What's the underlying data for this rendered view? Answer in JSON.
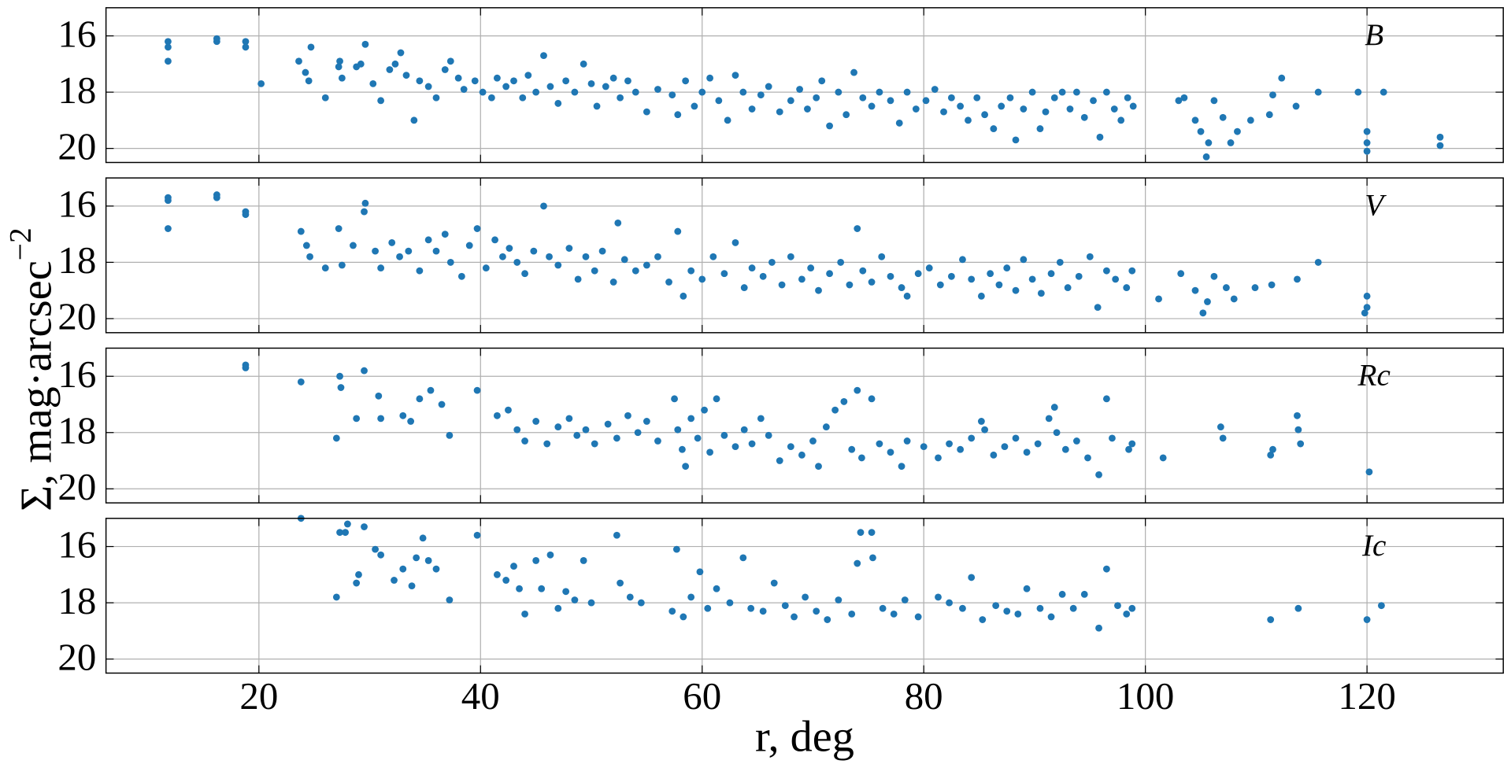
{
  "chart_data": [
    {
      "type": "scatter",
      "title": "B",
      "color": "#1f77b4",
      "grid": true,
      "ylabel": "Σ, mag·arcsec",
      "ylabel_sup": "−2",
      "xlim": [
        6.2,
        132.3
      ],
      "ylim": [
        20.5,
        15
      ],
      "xticks": [
        20,
        40,
        60,
        80,
        100,
        120
      ],
      "yticks": [
        16,
        18,
        20
      ],
      "x": [
        11.8,
        11.8,
        11.8,
        16.2,
        16.2,
        18.8,
        18.8,
        20.2,
        23.6,
        24.2,
        24.5,
        24.7,
        26,
        27.2,
        27.3,
        27.5,
        28.8,
        29.2,
        29.6,
        30.3,
        31,
        31.8,
        32.3,
        32.8,
        33.3,
        34,
        34.5,
        35.3,
        36,
        36.8,
        37.3,
        38,
        38.5,
        39.5,
        40.2,
        41,
        41.5,
        42.3,
        43,
        43.8,
        44.3,
        45,
        45.7,
        46.3,
        47,
        47.7,
        48.5,
        49.3,
        50,
        50.5,
        51.3,
        52,
        52.6,
        53.3,
        54,
        55,
        56,
        57.3,
        57.8,
        58.5,
        59.3,
        60,
        60.7,
        61.5,
        62.3,
        63,
        63.7,
        64.5,
        65.3,
        66,
        67,
        68,
        68.8,
        69.5,
        70.3,
        70.8,
        71.5,
        72.3,
        73,
        73.7,
        74.5,
        75.3,
        76,
        77,
        77.8,
        78.5,
        79.3,
        80.2,
        81,
        81.8,
        82.5,
        83.3,
        84,
        84.8,
        85.5,
        86.3,
        87,
        87.8,
        88.3,
        89,
        89.8,
        90.5,
        91,
        91.8,
        92.5,
        93.2,
        93.8,
        94.5,
        95.3,
        95.9,
        96.5,
        97.2,
        97.8,
        98.4,
        98.9,
        103,
        103.5,
        104.5,
        105,
        105.5,
        105.7,
        106.2,
        107,
        107.7,
        108.3,
        109.5,
        111.2,
        111.5,
        112.3,
        113.6,
        115.6,
        119.2,
        120,
        120,
        120,
        121.5,
        126.6,
        126.6
      ],
      "values": [
        16.2,
        16.4,
        16.9,
        16.2,
        16.1,
        16.2,
        16.4,
        17.7,
        16.9,
        17.3,
        17.6,
        16.4,
        18.2,
        17.1,
        16.9,
        17.5,
        17.1,
        17.0,
        16.3,
        17.7,
        18.3,
        17.2,
        17.0,
        16.6,
        17.4,
        19.0,
        17.6,
        17.8,
        18.2,
        17.2,
        16.9,
        17.5,
        17.9,
        17.6,
        18.0,
        18.2,
        17.5,
        17.8,
        17.6,
        18.2,
        17.4,
        18.0,
        16.7,
        17.8,
        18.4,
        17.6,
        18.0,
        17.0,
        17.7,
        18.5,
        17.8,
        17.5,
        18.2,
        17.6,
        18.0,
        18.7,
        17.9,
        18.1,
        18.8,
        17.6,
        18.5,
        18.0,
        17.5,
        18.3,
        19.0,
        17.4,
        18.0,
        18.6,
        18.1,
        17.8,
        18.7,
        18.3,
        17.9,
        18.6,
        18.2,
        17.6,
        19.2,
        18.0,
        18.8,
        17.3,
        18.2,
        18.5,
        18.0,
        18.3,
        19.1,
        18.0,
        18.6,
        18.3,
        17.9,
        18.7,
        18.2,
        18.5,
        19.0,
        18.2,
        18.8,
        19.3,
        18.5,
        18.2,
        19.7,
        18.6,
        18.0,
        19.3,
        18.7,
        18.2,
        18.0,
        18.6,
        18.0,
        18.9,
        18.3,
        19.6,
        18.0,
        18.6,
        19.0,
        18.2,
        18.5,
        18.3,
        18.2,
        19.0,
        19.4,
        20.3,
        19.8,
        18.3,
        18.9,
        19.8,
        19.4,
        19.0,
        18.8,
        18.1,
        17.5,
        18.5,
        18.0,
        18.0,
        19.4,
        19.8,
        20.1,
        18.0,
        19.6,
        19.9
      ]
    },
    {
      "type": "scatter",
      "title": "V",
      "color": "#1f77b4",
      "grid": true,
      "xlim": [
        6.2,
        132.3
      ],
      "ylim": [
        20.5,
        15
      ],
      "xticks": [
        20,
        40,
        60,
        80,
        100,
        120
      ],
      "yticks": [
        16,
        18,
        20
      ],
      "x": [
        11.8,
        11.8,
        11.8,
        16.2,
        16.2,
        18.8,
        18.8,
        23.8,
        24.3,
        24.6,
        26,
        27.2,
        27.5,
        28.5,
        29.5,
        29.6,
        30.5,
        31,
        32,
        32.7,
        33.5,
        34.5,
        35.3,
        36,
        36.8,
        37.3,
        38.3,
        39,
        39.7,
        40.5,
        41.3,
        42,
        42.6,
        43.3,
        44,
        44.8,
        45.7,
        46.2,
        47,
        48,
        48.8,
        49.5,
        50.3,
        51,
        52,
        52.4,
        53,
        54,
        55,
        56,
        57,
        57.8,
        58.3,
        59,
        60,
        61,
        62,
        63,
        63.8,
        64.5,
        65.5,
        66.3,
        67.2,
        68,
        69,
        69.8,
        70.5,
        71.5,
        72.5,
        73.3,
        74,
        74.5,
        75.3,
        76.2,
        77,
        78,
        78.5,
        79.5,
        80.5,
        81.5,
        82.5,
        83.5,
        84.3,
        85.2,
        86,
        86.8,
        87.5,
        88.3,
        89,
        89.8,
        90.6,
        91.5,
        92.3,
        93,
        94,
        95,
        95.7,
        96.5,
        97.3,
        98.3,
        98.8,
        101.2,
        103.2,
        104.5,
        105.2,
        105.6,
        106.2,
        107.3,
        108,
        109.9,
        111.4,
        113.7,
        115.6,
        120,
        120,
        119.8
      ],
      "values": [
        15.8,
        15.7,
        16.8,
        15.7,
        15.6,
        16.3,
        16.2,
        16.9,
        17.4,
        17.8,
        18.2,
        16.8,
        18.1,
        17.4,
        16.2,
        15.9,
        17.6,
        18.2,
        17.3,
        17.8,
        17.6,
        18.3,
        17.2,
        17.6,
        17.0,
        18.0,
        18.5,
        17.4,
        16.8,
        18.2,
        17.2,
        17.8,
        17.5,
        18.0,
        18.4,
        17.6,
        16.0,
        17.8,
        18.1,
        17.5,
        18.6,
        17.8,
        18.3,
        17.6,
        18.7,
        16.6,
        17.9,
        18.3,
        18.1,
        17.8,
        18.7,
        16.9,
        19.2,
        18.3,
        18.6,
        17.8,
        18.4,
        17.3,
        18.9,
        18.2,
        18.5,
        18.0,
        18.8,
        17.8,
        18.6,
        18.2,
        19.0,
        18.4,
        18.0,
        18.8,
        16.8,
        18.3,
        18.7,
        17.8,
        18.5,
        18.9,
        19.2,
        18.4,
        18.2,
        18.8,
        18.5,
        17.9,
        18.6,
        19.2,
        18.4,
        18.8,
        18.2,
        19.0,
        17.9,
        18.6,
        19.1,
        18.4,
        18.0,
        18.9,
        18.5,
        17.8,
        19.6,
        18.3,
        18.6,
        18.9,
        18.3,
        19.3,
        18.4,
        19.0,
        19.8,
        19.4,
        18.5,
        18.9,
        19.3,
        18.9,
        18.8,
        18.6,
        18.0,
        19.2,
        19.6,
        19.8
      ]
    },
    {
      "type": "scatter",
      "title": "Rc",
      "color": "#1f77b4",
      "grid": true,
      "xlim": [
        6.2,
        132.3
      ],
      "ylim": [
        20.5,
        15
      ],
      "xticks": [
        20,
        40,
        60,
        80,
        100,
        120
      ],
      "yticks": [
        16,
        18,
        20
      ],
      "x": [
        18.8,
        18.8,
        23.8,
        27,
        27.3,
        27.4,
        28.8,
        29.5,
        30.8,
        31,
        33,
        33.7,
        34.5,
        35.5,
        36.5,
        37.2,
        39.7,
        41.5,
        42.5,
        43.3,
        44,
        45,
        46,
        47,
        48,
        48.7,
        49.5,
        50.3,
        51.5,
        52.3,
        53.3,
        54.2,
        55,
        56,
        57.5,
        57.8,
        58.2,
        58.5,
        59,
        59.6,
        60.2,
        60.7,
        61.3,
        62,
        63,
        63.8,
        64.5,
        65.3,
        66,
        67,
        68,
        69,
        70,
        70.5,
        71.2,
        72,
        72.8,
        73.5,
        74,
        74.4,
        75.3,
        76,
        77,
        78,
        78.5,
        80,
        81.3,
        82.3,
        83.3,
        84.3,
        85.2,
        85.5,
        86.3,
        87.3,
        88.3,
        89.3,
        90.3,
        91.3,
        91.8,
        92,
        92.8,
        93.8,
        94.8,
        95.8,
        96.5,
        97,
        98.5,
        98.8,
        101.6,
        106.8,
        107,
        111.3,
        111.5,
        113.7,
        113.8,
        114,
        120.2
      ],
      "values": [
        15.6,
        15.7,
        16.2,
        18.2,
        16.0,
        16.4,
        17.5,
        15.8,
        16.7,
        17.5,
        17.4,
        17.6,
        16.8,
        16.5,
        17.0,
        18.1,
        16.5,
        17.4,
        17.2,
        17.9,
        18.3,
        17.6,
        18.4,
        17.8,
        17.5,
        18.1,
        17.9,
        18.4,
        17.7,
        18.2,
        17.4,
        18.0,
        17.6,
        18.3,
        16.8,
        17.9,
        18.6,
        19.2,
        17.5,
        18.2,
        17.2,
        18.7,
        16.8,
        18.1,
        18.5,
        17.9,
        18.4,
        17.5,
        18.1,
        19.0,
        18.5,
        18.8,
        18.3,
        19.2,
        17.8,
        17.2,
        16.9,
        18.6,
        16.5,
        18.9,
        16.8,
        18.4,
        18.7,
        19.2,
        18.3,
        18.5,
        18.9,
        18.4,
        18.6,
        18.2,
        17.6,
        17.9,
        18.8,
        18.5,
        18.2,
        18.7,
        18.4,
        17.5,
        17.1,
        18.0,
        18.6,
        18.3,
        18.9,
        19.5,
        16.8,
        18.2,
        18.6,
        18.4,
        18.9,
        17.8,
        18.2,
        18.8,
        18.6,
        17.4,
        17.9,
        18.4,
        19.4
      ]
    },
    {
      "type": "scatter",
      "title": "Ic",
      "color": "#1f77b4",
      "grid": true,
      "xlabel": "r, deg",
      "xlim": [
        6.2,
        132.3
      ],
      "ylim": [
        20.5,
        15
      ],
      "xticks": [
        20,
        40,
        60,
        80,
        100,
        120
      ],
      "yticks": [
        16,
        18,
        20
      ],
      "x": [
        23.8,
        27,
        27.3,
        27.8,
        28,
        28.8,
        29,
        29.5,
        30.5,
        31,
        32.2,
        33,
        33.8,
        34.2,
        34.8,
        35.3,
        36,
        37.2,
        39.7,
        41.5,
        42.3,
        43,
        43.5,
        44,
        45,
        45.5,
        46.3,
        47,
        47.7,
        48.5,
        49.3,
        50,
        52.3,
        52.6,
        53.5,
        54.5,
        57.3,
        57.7,
        58.3,
        59,
        59.8,
        60.5,
        61.3,
        62.5,
        63.7,
        64.4,
        65.5,
        66.5,
        67.5,
        68.3,
        69.3,
        70.3,
        71.3,
        72.3,
        73.5,
        74,
        74.3,
        75.3,
        75.4,
        76.3,
        77.3,
        78.3,
        79.5,
        81.3,
        82.3,
        83.5,
        84.3,
        85.3,
        86.5,
        87.5,
        88.5,
        89.3,
        90.5,
        91.5,
        92.5,
        93.5,
        94.5,
        95.8,
        96.5,
        97.5,
        98.3,
        98.8,
        111.3,
        113.8,
        120,
        121.3
      ],
      "values": [
        15.0,
        17.8,
        15.5,
        15.5,
        15.2,
        17.3,
        17.0,
        15.3,
        16.1,
        16.3,
        17.2,
        16.8,
        17.4,
        16.4,
        15.7,
        16.5,
        16.8,
        17.9,
        15.6,
        17.0,
        17.2,
        16.7,
        17.5,
        18.4,
        16.5,
        17.5,
        16.3,
        18.2,
        17.6,
        17.9,
        16.5,
        18.0,
        15.6,
        17.3,
        17.8,
        18.0,
        18.3,
        16.1,
        18.5,
        17.8,
        16.9,
        18.2,
        17.5,
        18.0,
        16.4,
        18.2,
        18.3,
        17.3,
        18.1,
        18.5,
        17.8,
        18.3,
        18.6,
        17.9,
        18.4,
        16.6,
        15.5,
        15.5,
        16.4,
        18.2,
        18.4,
        17.9,
        18.5,
        17.8,
        18.0,
        18.2,
        17.1,
        18.6,
        18.1,
        18.3,
        18.4,
        17.5,
        18.2,
        18.5,
        17.7,
        18.2,
        17.7,
        18.9,
        16.8,
        18.1,
        18.4,
        18.2,
        18.6,
        18.2,
        18.6,
        18.1
      ]
    }
  ]
}
